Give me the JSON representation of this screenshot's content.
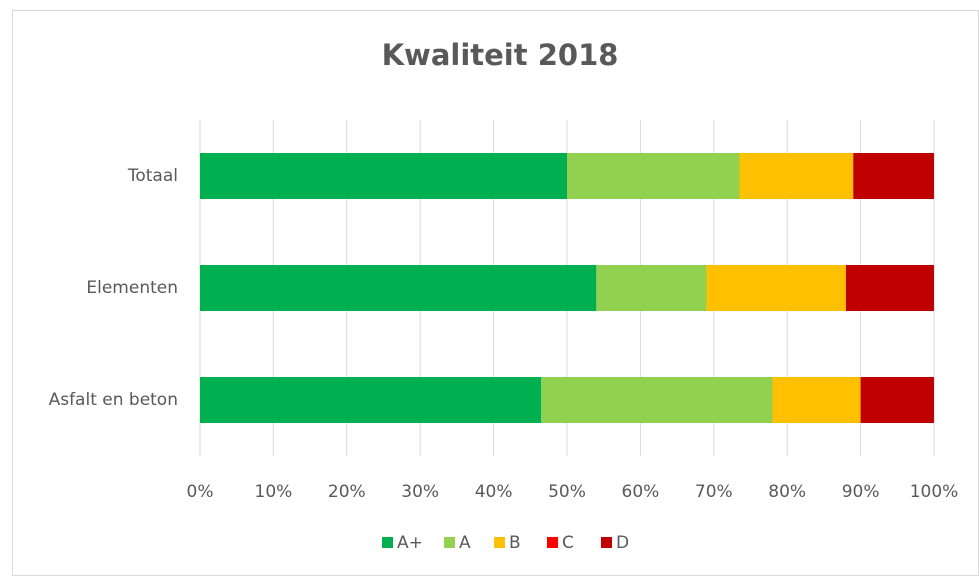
{
  "chart_data": {
    "type": "stacked_barh",
    "title": "Kwaliteit 2018",
    "categories": [
      "Totaal",
      "Elementen",
      "Asfalt en beton"
    ],
    "series": [
      {
        "name": "A+",
        "color": "#00b050",
        "values": [
          50,
          54,
          46.5
        ]
      },
      {
        "name": "A",
        "color": "#92d050",
        "values": [
          23.5,
          15,
          31.5
        ]
      },
      {
        "name": "B",
        "color": "#ffc000",
        "values": [
          15.5,
          19,
          12
        ]
      },
      {
        "name": "C",
        "color": "#ff0000",
        "values": [
          0,
          0,
          0
        ]
      },
      {
        "name": "D",
        "color": "#c00000",
        "values": [
          11,
          12,
          10
        ]
      }
    ],
    "xlim": [
      0,
      100
    ],
    "xticks": [
      {
        "value": 0,
        "label": "0%"
      },
      {
        "value": 10,
        "label": "10%"
      },
      {
        "value": 20,
        "label": "20%"
      },
      {
        "value": 30,
        "label": "30%"
      },
      {
        "value": 40,
        "label": "40%"
      },
      {
        "value": 50,
        "label": "50%"
      },
      {
        "value": 60,
        "label": "60%"
      },
      {
        "value": 70,
        "label": "70%"
      },
      {
        "value": 80,
        "label": "80%"
      },
      {
        "value": 90,
        "label": "90%"
      },
      {
        "value": 100,
        "label": "100%"
      }
    ],
    "grid": true,
    "legend": "bottom"
  }
}
